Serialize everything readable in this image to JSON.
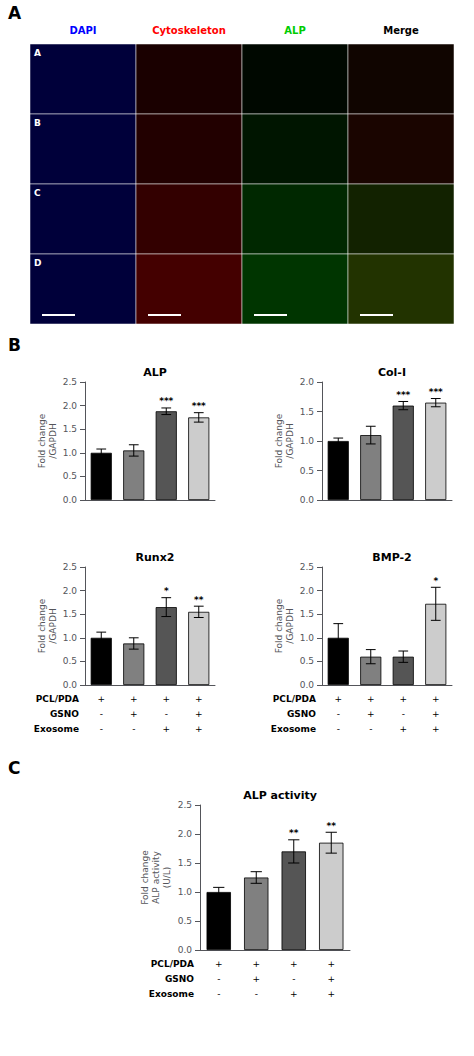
{
  "chart_data": [
    {
      "type": "image_grid",
      "panel_label": "A",
      "categories": [
        "DAPI",
        "Cytoskeleton",
        "ALP",
        "Merge"
      ],
      "colors": [
        "#0000ff",
        "#ff0000",
        "#00cc00",
        "#000000"
      ],
      "series": [
        {
          "name": "A",
          "colors": [
            "#00003a",
            "#1a0000",
            "#000800",
            "#100500"
          ]
        },
        {
          "name": "B",
          "colors": [
            "#00003a",
            "#220000",
            "#001500",
            "#1a0500"
          ]
        },
        {
          "name": "C",
          "colors": [
            "#00003a",
            "#330000",
            "#002800",
            "#122200"
          ]
        },
        {
          "name": "D",
          "colors": [
            "#00003a",
            "#440000",
            "#003500",
            "#223300"
          ]
        }
      ]
    },
    {
      "type": "bar",
      "panel_label": "B",
      "title": "ALP",
      "categories": [
        null,
        null,
        null,
        null
      ],
      "values": [
        1.0,
        1.05,
        1.88,
        1.75
      ],
      "errors": [
        0.08,
        0.12,
        0.07,
        0.1
      ],
      "annotations": [
        null,
        null,
        "***",
        "***"
      ],
      "colors": [
        "#000000",
        "#808080",
        "#555555",
        "#cccccc"
      ],
      "ylabel": "Fold change\n/GAPDH",
      "ylim": [
        0.0,
        2.5
      ],
      "yticks": [
        {
          "value": 0,
          "label": "0.0"
        },
        0.5,
        {
          "value": 1,
          "label": "1.0"
        },
        1.5,
        {
          "value": 2,
          "label": "2.0"
        },
        2.5
      ],
      "grid": false,
      "tick_labels": "y"
    },
    {
      "type": "bar",
      "title": "Col-I",
      "categories": [
        null,
        null,
        null,
        null
      ],
      "values": [
        1.0,
        1.1,
        1.6,
        1.65
      ],
      "errors": [
        0.05,
        0.15,
        0.07,
        0.07
      ],
      "annotations": [
        null,
        null,
        "***",
        "***"
      ],
      "colors": [
        "#000000",
        "#808080",
        "#555555",
        "#cccccc"
      ],
      "ylabel": "Fold change\n/GAPDH",
      "ylim": [
        0.0,
        2.0
      ],
      "yticks": [
        {
          "value": 0,
          "label": "0.0"
        },
        0.5,
        {
          "value": 1,
          "label": "1.0"
        },
        1.5,
        {
          "value": 2,
          "label": "2.0"
        }
      ],
      "grid": false,
      "tick_labels": "y"
    },
    {
      "type": "bar",
      "title": "Runx2",
      "categories": [
        null,
        null,
        null,
        null
      ],
      "values": [
        1.0,
        0.88,
        1.65,
        1.55
      ],
      "errors": [
        0.12,
        0.12,
        0.2,
        0.12
      ],
      "annotations": [
        null,
        null,
        "*",
        "**"
      ],
      "colors": [
        "#000000",
        "#808080",
        "#555555",
        "#cccccc"
      ],
      "ylabel": "Fold change\n/GAPDH",
      "ylim": [
        0.0,
        2.5
      ],
      "yticks": [
        {
          "value": 0,
          "label": "0.0"
        },
        0.5,
        {
          "value": 1,
          "label": "1.0"
        },
        1.5,
        {
          "value": 2,
          "label": "2.0"
        },
        2.5
      ],
      "grid": false,
      "tick_labels": "y",
      "table": {
        "labels": [
          "PCL/PDA",
          "GSNO",
          "Exosome"
        ],
        "rows": [
          [
            "+",
            "+",
            "+",
            "+"
          ],
          [
            "-",
            "+",
            "-",
            "+"
          ],
          [
            "-",
            "-",
            "+",
            "+"
          ]
        ]
      }
    },
    {
      "type": "bar",
      "title": "BMP-2",
      "categories": [
        null,
        null,
        null,
        null
      ],
      "values": [
        1.0,
        0.6,
        0.6,
        1.72
      ],
      "errors": [
        0.3,
        0.15,
        0.12,
        0.35
      ],
      "annotations": [
        null,
        null,
        null,
        "*"
      ],
      "colors": [
        "#000000",
        "#808080",
        "#555555",
        "#cccccc"
      ],
      "ylabel": "Fold change\n/GAPDH",
      "ylim": [
        0.0,
        2.5
      ],
      "yticks": [
        {
          "value": 0,
          "label": "0.0"
        },
        0.5,
        {
          "value": 1,
          "label": "1.0"
        },
        1.5,
        {
          "value": 2,
          "label": "2.0"
        },
        2.5
      ],
      "grid": false,
      "tick_labels": "y",
      "table": {
        "labels": [
          "PCL/PDA",
          "GSNO",
          "Exosome"
        ],
        "rows": [
          [
            "+",
            "+",
            "+",
            "+"
          ],
          [
            "-",
            "+",
            "-",
            "+"
          ],
          [
            "-",
            "-",
            "+",
            "+"
          ]
        ]
      }
    },
    {
      "type": "bar",
      "panel_label": "C",
      "title": "ALP activity",
      "categories": [
        null,
        null,
        null,
        null
      ],
      "values": [
        1.0,
        1.25,
        1.7,
        1.85
      ],
      "errors": [
        0.08,
        0.1,
        0.2,
        0.18
      ],
      "annotations": [
        null,
        null,
        "**",
        "**"
      ],
      "colors": [
        "#000000",
        "#808080",
        "#555555",
        "#cccccc"
      ],
      "ylabel": "Fold change\nALP activity\n(U/L)",
      "ylim": [
        0.0,
        2.5
      ],
      "yticks": [
        {
          "value": 0,
          "label": "0.0"
        },
        0.5,
        {
          "value": 1,
          "label": "1.0"
        },
        1.5,
        {
          "value": 2,
          "label": "2.0"
        },
        2.5
      ],
      "grid": false,
      "tick_labels": "y",
      "table": {
        "labels": [
          "PCL/PDA",
          "GSNO",
          "Exosome"
        ],
        "rows": [
          [
            "+",
            "+",
            "+",
            "+"
          ],
          [
            "-",
            "+",
            "-",
            "+"
          ],
          [
            "-",
            "-",
            "+",
            "+"
          ]
        ]
      }
    }
  ]
}
